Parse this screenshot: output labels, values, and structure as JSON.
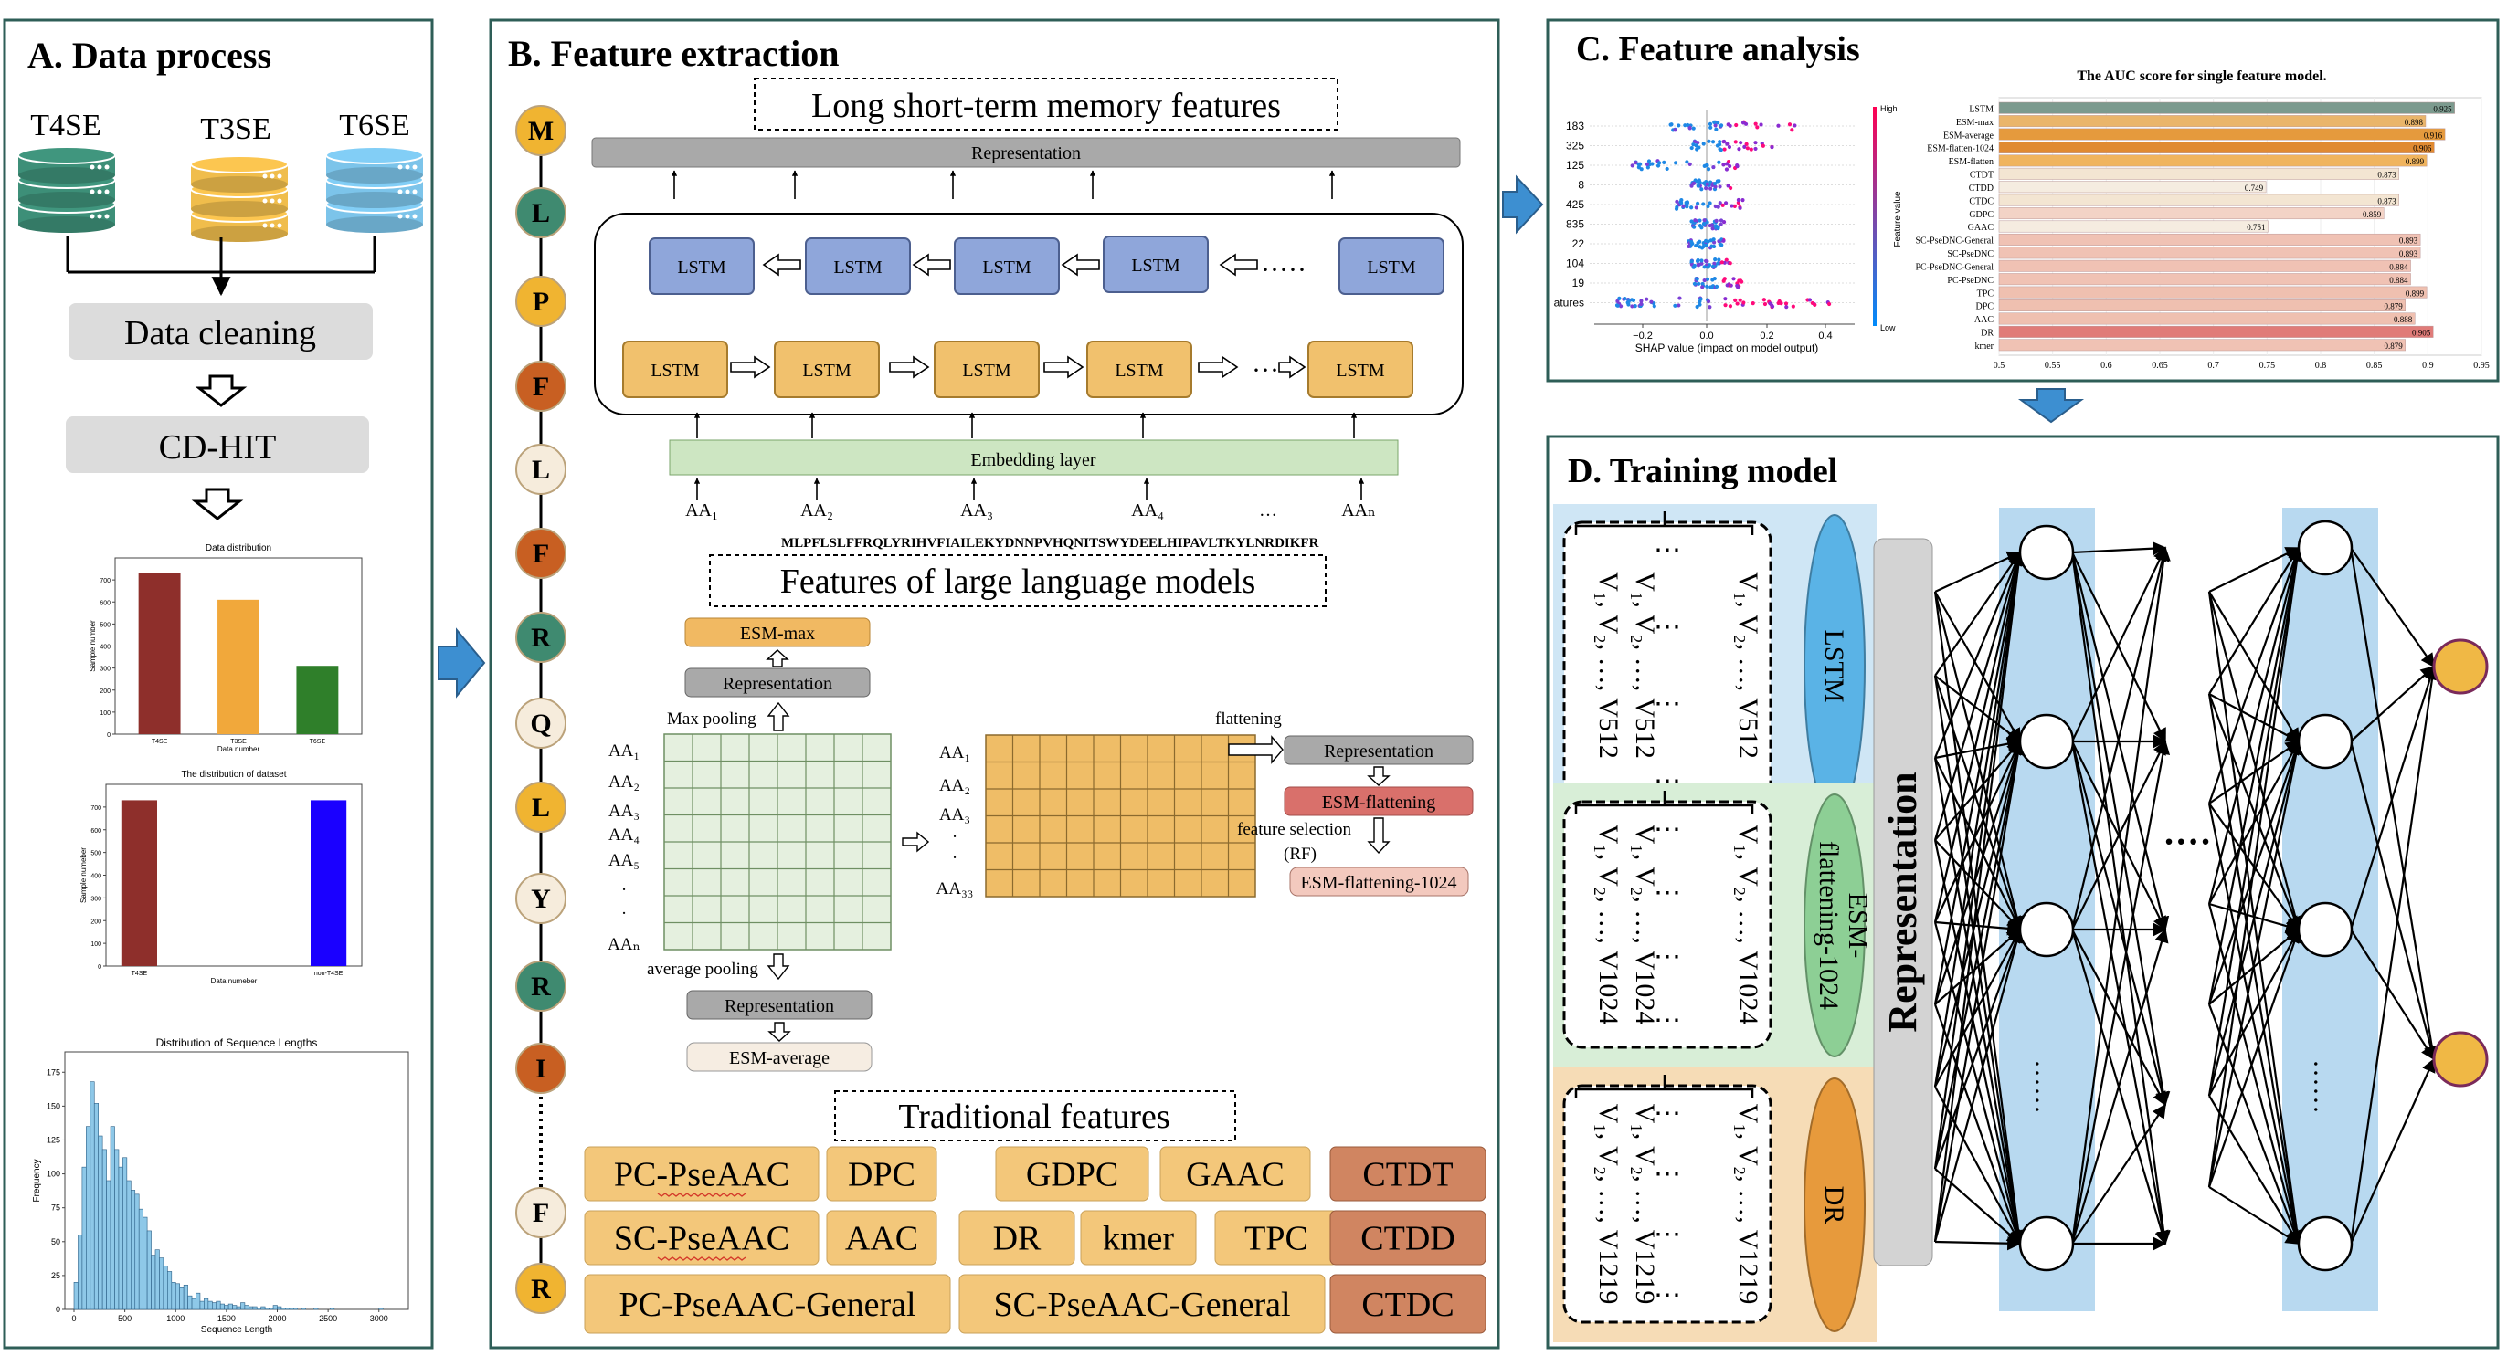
{
  "panels": {
    "a": "A. Data process",
    "b": "B. Feature extraction",
    "c": "C. Feature analysis",
    "d": "D. Training model"
  },
  "data_process": {
    "databases": [
      {
        "label": "T4SE",
        "color": "#3d8f78"
      },
      {
        "label": "T3SE",
        "color": "#f0bd4c"
      },
      {
        "label": "T6SE",
        "color": "#7cc4ea"
      }
    ],
    "steps": [
      "Data cleaning",
      "CD-HIT"
    ],
    "chart1": {
      "title": "Data distribution",
      "xlabel": "Data number",
      "ylabel": "Sample number",
      "categories": [
        "T4SE",
        "T3SE",
        "T6SE"
      ],
      "values": [
        730,
        610,
        310
      ],
      "colors": [
        "#8e2f2b",
        "#f1a83b",
        "#2f7f2a"
      ],
      "yticks": [
        "0",
        "100",
        "200",
        "300",
        "400",
        "500",
        "600",
        "700"
      ]
    },
    "chart2": {
      "title": "The distribution of dataset",
      "xlabel": "Data numeber",
      "ylabel": "Sample numeber",
      "categories": [
        "T4SE",
        "non-T4SE"
      ],
      "values": [
        730,
        730
      ],
      "colors": [
        "#8e2f2b",
        "#1a00ff"
      ],
      "yticks": [
        "0",
        "100",
        "200",
        "300",
        "400",
        "500",
        "600",
        "700"
      ]
    },
    "chart3": {
      "title": "Distribution of Sequence Lengths",
      "xlabel": "Sequence Length",
      "ylabel": "Frequency",
      "xticks": [
        "0",
        "500",
        "1000",
        "1500",
        "2000",
        "2500",
        "3000"
      ],
      "yticks": [
        "0",
        "25",
        "50",
        "75",
        "100",
        "125",
        "150",
        "175"
      ]
    }
  },
  "feature_extraction": {
    "residues": [
      "M",
      "L",
      "P",
      "F",
      "L",
      "F",
      "R",
      "Q",
      "L",
      "Y",
      "R",
      "I",
      "F",
      "R"
    ],
    "residue_colors": [
      "#f0b431",
      "#3f8a70",
      "#f0b431",
      "#c85f22",
      "#f6ecdc",
      "#c85f22",
      "#3f8a70",
      "#f6ecdc",
      "#f0b431",
      "#f6ecdc",
      "#3f8a70",
      "#c85f22",
      "#f6ecdc",
      "#f0b431"
    ],
    "lstm_title": "Long short-term memory features",
    "representation": "Representation",
    "lstm_label": "LSTM",
    "embedding": "Embedding layer",
    "aa_inputs": [
      "AA₁",
      "AA₂",
      "AA₃",
      "AA₄",
      "…",
      "AAₙ"
    ],
    "sequence": "MLPFLSLFFRQLYRIHVFIAILEKYDNNPVHQNITSWYDEELHIPAVLTKYLNRDIKFR",
    "llm_title": "Features of large language models",
    "esm_max": "ESM-max",
    "max_pooling": "Max pooling",
    "average_pooling": "average pooling",
    "esm_average": "ESM-average",
    "flattening": "flattening",
    "esm_flattening": "ESM-flattening",
    "feature_selection": "feature selection",
    "rf": "(RF)",
    "esm_flattening_1024": "ESM-flattening-1024",
    "left_rows": [
      "AA₁",
      "AA₂",
      "AA₃",
      "AA₄",
      "AA₅",
      "·",
      "·",
      "AAₙ"
    ],
    "right_rows": [
      "AA₁",
      "AA₂",
      "AA₃",
      "·",
      "·",
      "AA₃₃"
    ],
    "trad_title": "Traditional features",
    "trad": [
      {
        "label": "PC-PseAAC",
        "underline": true
      },
      {
        "label": "DPC"
      },
      {
        "label": "GDPC"
      },
      {
        "label": "GAAC"
      },
      {
        "label": "CTDT",
        "dark": true
      },
      {
        "label": "SC-PseAAC",
        "underline": true
      },
      {
        "label": "AAC"
      },
      {
        "label": "DR"
      },
      {
        "label": "kmer"
      },
      {
        "label": "TPC"
      },
      {
        "label": "CTDD",
        "dark": true
      },
      {
        "label": "PC-PseAAC-General"
      },
      {
        "label": "SC-PseAAC-General"
      },
      {
        "label": "CTDC",
        "dark": true
      }
    ]
  },
  "feature_analysis": {
    "shap_features": [
      "183",
      "325",
      "125",
      "8",
      "425",
      "835",
      "22",
      "104",
      "19",
      "atures"
    ],
    "shap_xlabel": "SHAP value (impact on model output)",
    "shap_xticks": [
      "−0.2",
      "0.0",
      "0.2",
      "0.4"
    ],
    "high": "High",
    "low": "Low",
    "feature_value": "Feature value",
    "chart_data": {
      "type": "bar",
      "title": "The AUC score for single feature model.",
      "categories": [
        "LSTM",
        "ESM-max",
        "ESM-average",
        "ESM-flatten-1024",
        "ESM-flatten",
        "CTDT",
        "CTDD",
        "CTDC",
        "GDPC",
        "GAAC",
        "SC-PseDNC-General",
        "SC-PseDNC",
        "PC-PseDNC-General",
        "PC-PseDNC",
        "TPC",
        "DPC",
        "AAC",
        "DR",
        "kmer"
      ],
      "values": [
        0.925,
        0.898,
        0.916,
        0.906,
        0.899,
        0.873,
        0.749,
        0.873,
        0.859,
        0.751,
        0.893,
        0.893,
        0.884,
        0.884,
        0.899,
        0.879,
        0.888,
        0.905,
        0.879
      ],
      "value_labels": [
        "0.925",
        "0.898",
        "0.916",
        "0.906",
        "0.899",
        "0.873",
        "0.749",
        "0.873",
        "0.859",
        "0.751",
        "0.893",
        "0.893",
        "0.884",
        "0.884",
        "0.899",
        "0.879",
        "0.888",
        "0.905",
        "0.879"
      ],
      "colors": [
        "#7c9a8e",
        "#eab56a",
        "#e59a3d",
        "#e08a32",
        "#f0b45e",
        "#f3e5d2",
        "#f5ece0",
        "#f3e5d2",
        "#f3d3c6",
        "#f5ece0",
        "#f0c2b4",
        "#f0c2b4",
        "#f0c2b4",
        "#f0c2b4",
        "#efc0b0",
        "#efc0b0",
        "#efc0b0",
        "#e07b78",
        "#f0c2b4"
      ],
      "xticks": [
        "0.5",
        "0.55",
        "0.6",
        "0.65",
        "0.7",
        "0.75",
        "0.8",
        "0.85",
        "0.9",
        "0.95"
      ],
      "xlim": [
        0.5,
        0.95
      ]
    }
  },
  "training": {
    "groups": [
      {
        "label": "LSTM",
        "n": "512",
        "ell_color": "#5ab3e6",
        "bg": "#cfe6f5"
      },
      {
        "label": "ESM-flattening-1024",
        "lines": [
          "ESM-",
          "flattening-1024"
        ],
        "n": "1024",
        "ell_color": "#8dcf95",
        "bg": "#d8eed7"
      },
      {
        "label": "DR",
        "n": "1219",
        "ell_color": "#e79a3c",
        "bg": "#f6dcb6"
      }
    ],
    "representation": "Representation",
    "dots_h": "····",
    "dots_v": "······"
  }
}
